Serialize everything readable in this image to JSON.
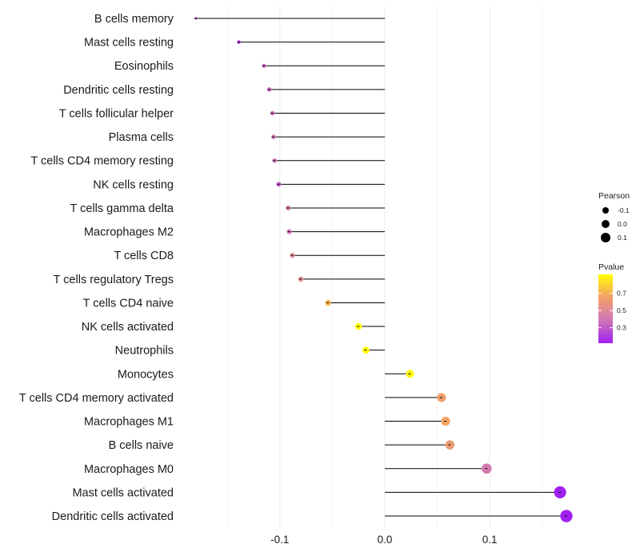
{
  "chart_data": {
    "type": "lollipop",
    "title": "",
    "xlabel": "",
    "ylabel": "",
    "xlim": [
      -0.19,
      0.18
    ],
    "xticks": [
      -0.1,
      0.0,
      0.1
    ],
    "xtick_labels": [
      "-0.1",
      "0.0",
      "0.1"
    ],
    "grid": true,
    "categories": [
      {
        "label": "B cells memory",
        "value": -0.18,
        "pvalue": 0.2
      },
      {
        "label": "Mast cells resting",
        "value": -0.139,
        "pvalue": 0.2
      },
      {
        "label": "Eosinophils",
        "value": -0.115,
        "pvalue": 0.36
      },
      {
        "label": "Dendritic cells resting",
        "value": -0.11,
        "pvalue": 0.33
      },
      {
        "label": "T cells follicular helper",
        "value": -0.107,
        "pvalue": 0.38
      },
      {
        "label": "Plasma cells",
        "value": -0.106,
        "pvalue": 0.4
      },
      {
        "label": "T cells CD4 memory resting",
        "value": -0.105,
        "pvalue": 0.38
      },
      {
        "label": "NK cells resting",
        "value": -0.101,
        "pvalue": 0.3
      },
      {
        "label": "T cells gamma delta",
        "value": -0.092,
        "pvalue": 0.42
      },
      {
        "label": "Macrophages M2",
        "value": -0.091,
        "pvalue": 0.4
      },
      {
        "label": "T cells CD8",
        "value": -0.088,
        "pvalue": 0.5
      },
      {
        "label": "T cells regulatory  Tregs ",
        "value": -0.08,
        "pvalue": 0.53
      },
      {
        "label": "T cells CD4 naive",
        "value": -0.054,
        "pvalue": 0.72
      },
      {
        "label": "NK cells activated",
        "value": -0.025,
        "pvalue": 0.92
      },
      {
        "label": "Neutrophils",
        "value": -0.018,
        "pvalue": 0.92
      },
      {
        "label": "Monocytes",
        "value": 0.024,
        "pvalue": 0.9
      },
      {
        "label": "T cells CD4 memory activated",
        "value": 0.054,
        "pvalue": 0.64
      },
      {
        "label": "Macrophages M1",
        "value": 0.058,
        "pvalue": 0.67
      },
      {
        "label": "B cells naive",
        "value": 0.062,
        "pvalue": 0.61
      },
      {
        "label": "Macrophages M0",
        "value": 0.097,
        "pvalue": 0.42
      },
      {
        "label": "Mast cells activated",
        "value": 0.167,
        "pvalue": 0.12
      },
      {
        "label": "Dendritic cells activated",
        "value": 0.173,
        "pvalue": 0.12
      }
    ],
    "size_legend": {
      "title": "Pearson",
      "entries": [
        {
          "label": "-0.1",
          "value": -0.1
        },
        {
          "label": "0.0",
          "value": 0.0
        },
        {
          "label": "0.1",
          "value": 0.1
        }
      ]
    },
    "color_legend": {
      "title": "Pvalue",
      "range": [
        0.12,
        0.92
      ],
      "ticks": [
        {
          "label": "0.7",
          "value": 0.7
        },
        {
          "label": "0.5",
          "value": 0.5
        },
        {
          "label": "0.3",
          "value": 0.3
        }
      ],
      "low_color": "#a020f0",
      "mid_color": "#d278b4",
      "high_color": "#f5a760",
      "top_color": "#ffff00"
    }
  }
}
